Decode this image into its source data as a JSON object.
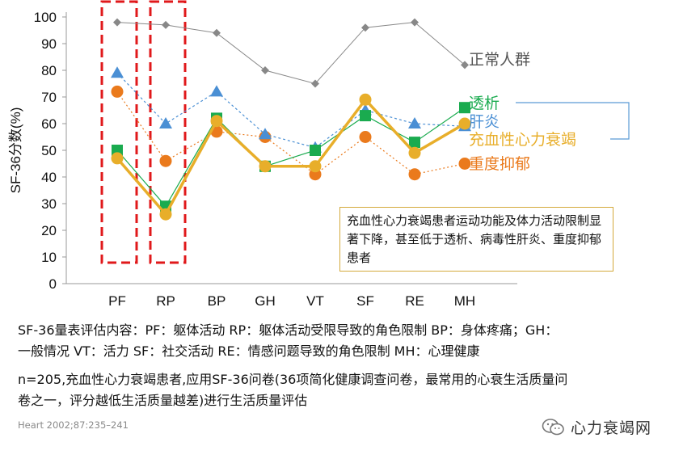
{
  "chart_data": {
    "type": "line",
    "ylabel": "SF-36分数(%)",
    "ylim": [
      0,
      100
    ],
    "yticks": [
      0,
      10,
      20,
      30,
      40,
      50,
      60,
      70,
      80,
      90,
      100
    ],
    "categories": [
      "PF",
      "RP",
      "BP",
      "GH",
      "VT",
      "SF",
      "RE",
      "MH"
    ],
    "series": [
      {
        "name": "正常人群",
        "color": "#888888",
        "marker": "diamond",
        "values": [
          98,
          97,
          94,
          80,
          75,
          96,
          98,
          82
        ]
      },
      {
        "name": "透析",
        "color": "#1aab4f",
        "marker": "square",
        "values": [
          50,
          29,
          62,
          44,
          50,
          63,
          53,
          66
        ]
      },
      {
        "name": "肝炎",
        "color": "#4a8fd4",
        "marker": "triangle",
        "values": [
          79,
          60,
          72,
          56,
          51,
          65,
          60,
          59
        ]
      },
      {
        "name": "充血性心力衰竭",
        "color": "#e8ae2a",
        "marker": "circle",
        "values": [
          47,
          26,
          61,
          44,
          44,
          69,
          49,
          60
        ]
      },
      {
        "name": "重度抑郁",
        "color": "#ea7a1c",
        "marker": "circle",
        "values": [
          72,
          46,
          57,
          55,
          41,
          55,
          41,
          45
        ]
      }
    ],
    "highlight_categories": [
      "PF",
      "RP"
    ],
    "legend_placement": "right"
  },
  "callout": {
    "text": "充血性心力衰竭患者运动功能及体力活动限制显著下降，甚至低于透析、病毒性肝炎、重度抑郁患者"
  },
  "notes": {
    "line1": "SF-36量表评估内容：PF：躯体活动 RP：躯体活动受限导致的角色限制 BP：身体疼痛；GH：",
    "line2": "一般情况 VT：活力 SF：社交活动 RE：情感问题导致的角色限制 MH：心理健康",
    "line3": "n=205,充血性心力衰竭患者,应用SF-36问卷(36项简化健康调查问卷，最常用的心衰生活质量问",
    "line4": "卷之一，评分越低生活质量越差)进行生活质量评估"
  },
  "source": "Heart 2002;87:235–241",
  "logo_text": "心力衰竭网",
  "icon": "wechat-icon"
}
